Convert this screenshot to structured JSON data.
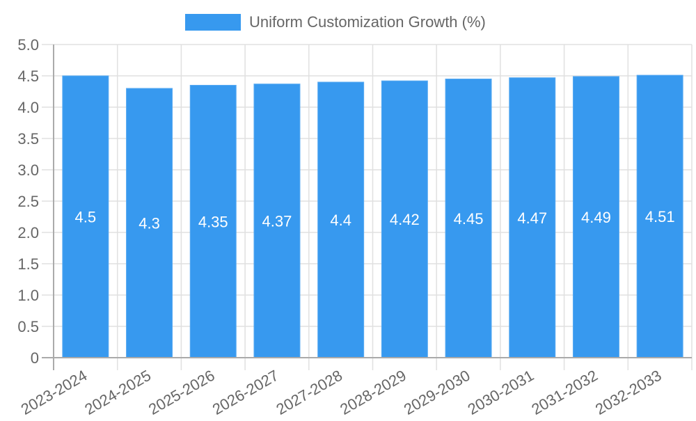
{
  "chart_data": {
    "type": "bar",
    "title": "",
    "xlabel": "",
    "ylabel": "",
    "categories": [
      "2023-2024",
      "2024-2025",
      "2025-2026",
      "2026-2027",
      "2027-2028",
      "2028-2029",
      "2029-2030",
      "2030-2031",
      "2031-2032",
      "2032-2033"
    ],
    "series": [
      {
        "name": "Uniform Customization Growth (%)",
        "values": [
          4.5,
          4.3,
          4.35,
          4.37,
          4.4,
          4.42,
          4.45,
          4.47,
          4.49,
          4.51
        ],
        "color": "#3799ef",
        "border_color": "#5aabf2"
      }
    ],
    "ylim": [
      0,
      5.0
    ],
    "y_ticks": [
      "0",
      "0.5",
      "1.0",
      "1.5",
      "2.0",
      "2.5",
      "3.0",
      "3.5",
      "4.0",
      "4.5",
      "5.0"
    ],
    "grid": true,
    "legend_position": "top",
    "data_labels": true,
    "x_tick_rotation": -30
  },
  "colors": {
    "bar": "#3799ef",
    "grid": "#e0e0e0",
    "axis": "#aaaaaa",
    "text": "#666666",
    "label": "#ffffff"
  }
}
